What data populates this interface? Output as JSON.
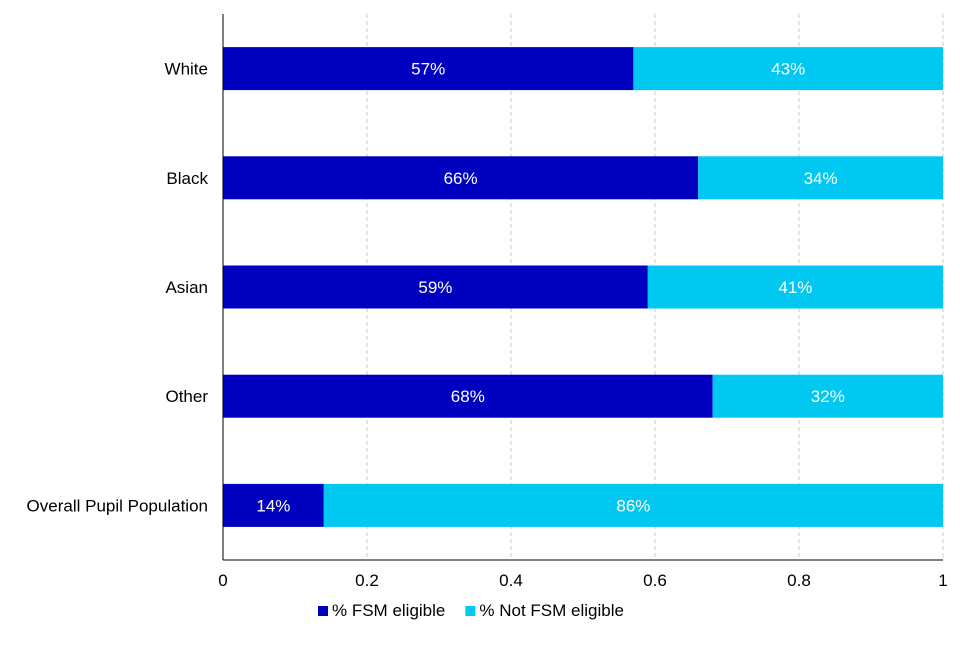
{
  "chart_data": {
    "type": "bar",
    "orientation": "horizontal",
    "stacked": true,
    "categories": [
      "White",
      "Black",
      "Asian",
      "Other",
      "Overall Pupil Population"
    ],
    "series": [
      {
        "name": "% FSM eligible",
        "values": [
          0.57,
          0.66,
          0.59,
          0.68,
          0.14
        ],
        "labels": [
          "57%",
          "66%",
          "59%",
          "68%",
          "14%"
        ],
        "color": "#0000c0"
      },
      {
        "name": "% Not FSM eligible",
        "values": [
          0.43,
          0.34,
          0.41,
          0.32,
          0.86
        ],
        "labels": [
          "43%",
          "34%",
          "41%",
          "32%",
          "86%"
        ],
        "color": "#00c8f0"
      }
    ],
    "xlim": [
      0,
      1
    ],
    "xticks": [
      0,
      0.2,
      0.4,
      0.6,
      0.8,
      1
    ],
    "xtick_labels": [
      "0",
      "0.2",
      "0.4",
      "0.6",
      "0.8",
      "1"
    ],
    "grid": "vertical dashed",
    "legend_position": "bottom"
  }
}
